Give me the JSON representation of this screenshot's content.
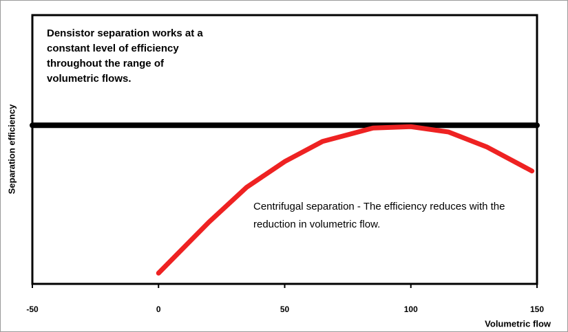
{
  "chart_data": {
    "type": "line",
    "y_label": "Separation efficiency",
    "x_label": "Volumetric flow",
    "annotations": [
      "Densistor separation works at a constant level of efficiency throughout the range of volumetric flows.",
      "Centrifugal separation - The efficiency reduces with the reduction in volumetric flow."
    ],
    "xlim": [
      -50,
      150
    ],
    "xticks": [
      -50,
      0,
      50,
      100,
      150
    ],
    "ylim": [
      0,
      100
    ],
    "series": [
      {
        "name": "Densistor separation",
        "color": "#000000",
        "x": [
          -50,
          150
        ],
        "values": [
          59,
          59
        ]
      },
      {
        "name": "Centrifugal separation",
        "color": "#ee2222",
        "x": [
          0,
          20,
          35,
          50,
          65,
          85,
          100,
          115,
          130,
          148
        ],
        "values": [
          4,
          23,
          36,
          45.5,
          53,
          58,
          58.5,
          56.5,
          51,
          42
        ]
      }
    ]
  }
}
